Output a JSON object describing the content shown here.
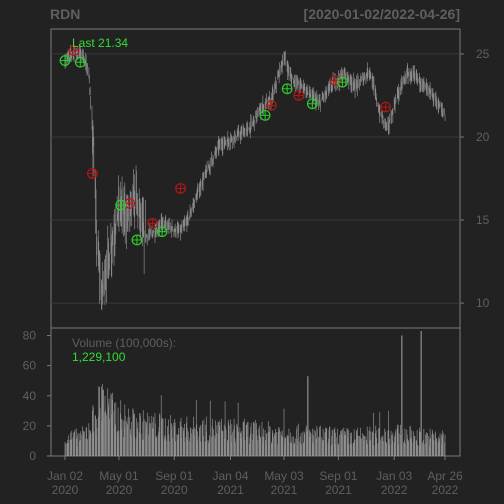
{
  "header": {
    "symbol": "RDN",
    "date_range": "[2020-01-02/2022-04-26]"
  },
  "colors": {
    "background": "#222222",
    "frame": "#7a7a7a",
    "text": "#5f5f5f",
    "grid": "#3a3a3a",
    "price_bar": "#8a8a8a",
    "volume_bar": "#8f8f8f",
    "buy_marker": "#2ecc2e",
    "sell_marker": "#b01818",
    "last_label": "#33dd33"
  },
  "chart_data": [
    {
      "type": "candlestick",
      "panel": "price",
      "last_label": "Last 21.34",
      "ylim": [
        8.5,
        26.5
      ],
      "y_ticks": [
        10,
        15,
        20,
        25
      ],
      "y_tick_labels": [
        "10",
        "15",
        "20",
        "25"
      ],
      "date_start": "2020-01-02",
      "date_end": "2022-04-26",
      "series_key_points": [
        {
          "date": "2020-01-02",
          "value": 24.6
        },
        {
          "date": "2020-01-20",
          "value": 25.1
        },
        {
          "date": "2020-02-10",
          "value": 25.0
        },
        {
          "date": "2020-02-24",
          "value": 23.8
        },
        {
          "date": "2020-03-05",
          "value": 19.5
        },
        {
          "date": "2020-03-12",
          "value": 14.0
        },
        {
          "date": "2020-03-23",
          "value": 10.5
        },
        {
          "date": "2020-04-02",
          "value": 12.0
        },
        {
          "date": "2020-04-15",
          "value": 13.5
        },
        {
          "date": "2020-05-01",
          "value": 15.8
        },
        {
          "date": "2020-05-20",
          "value": 15.2
        },
        {
          "date": "2020-06-08",
          "value": 16.5
        },
        {
          "date": "2020-06-25",
          "value": 14.0
        },
        {
          "date": "2020-07-15",
          "value": 14.2
        },
        {
          "date": "2020-08-05",
          "value": 14.8
        },
        {
          "date": "2020-08-25",
          "value": 14.5
        },
        {
          "date": "2020-09-15",
          "value": 14.3
        },
        {
          "date": "2020-10-01",
          "value": 15.0
        },
        {
          "date": "2020-11-05",
          "value": 17.5
        },
        {
          "date": "2020-12-10",
          "value": 19.5
        },
        {
          "date": "2021-01-15",
          "value": 20.0
        },
        {
          "date": "2021-02-15",
          "value": 20.5
        },
        {
          "date": "2021-03-15",
          "value": 21.8
        },
        {
          "date": "2021-04-05",
          "value": 22.2
        },
        {
          "date": "2021-05-03",
          "value": 24.8
        },
        {
          "date": "2021-05-20",
          "value": 23.5
        },
        {
          "date": "2021-06-15",
          "value": 23.0
        },
        {
          "date": "2021-07-20",
          "value": 22.0
        },
        {
          "date": "2021-08-20",
          "value": 23.2
        },
        {
          "date": "2021-09-15",
          "value": 23.8
        },
        {
          "date": "2021-10-10",
          "value": 23.0
        },
        {
          "date": "2021-11-10",
          "value": 24.0
        },
        {
          "date": "2021-12-01",
          "value": 21.5
        },
        {
          "date": "2021-12-20",
          "value": 20.5
        },
        {
          "date": "2022-01-10",
          "value": 22.5
        },
        {
          "date": "2022-02-01",
          "value": 23.8
        },
        {
          "date": "2022-02-25",
          "value": 23.5
        },
        {
          "date": "2022-03-20",
          "value": 22.8
        },
        {
          "date": "2022-04-10",
          "value": 22.0
        },
        {
          "date": "2022-04-26",
          "value": 21.34
        }
      ],
      "buy_signals": [
        {
          "date": "2020-01-02",
          "value": 24.6
        },
        {
          "date": "2020-02-05",
          "value": 24.5
        },
        {
          "date": "2020-05-05",
          "value": 15.9
        },
        {
          "date": "2020-06-10",
          "value": 13.8
        },
        {
          "date": "2020-08-05",
          "value": 14.3
        },
        {
          "date": "2021-03-22",
          "value": 21.3
        },
        {
          "date": "2021-05-10",
          "value": 22.9
        },
        {
          "date": "2021-07-05",
          "value": 22.0
        },
        {
          "date": "2021-09-10",
          "value": 23.3
        }
      ],
      "sell_signals": [
        {
          "date": "2020-01-22",
          "value": 25.2
        },
        {
          "date": "2020-03-03",
          "value": 17.8
        },
        {
          "date": "2020-05-25",
          "value": 16.0
        },
        {
          "date": "2020-07-15",
          "value": 14.8
        },
        {
          "date": "2020-09-15",
          "value": 16.9
        },
        {
          "date": "2021-04-05",
          "value": 21.9
        },
        {
          "date": "2021-06-05",
          "value": 22.5
        },
        {
          "date": "2021-08-25",
          "value": 23.4
        },
        {
          "date": "2021-12-15",
          "value": 21.8
        }
      ]
    },
    {
      "type": "bar",
      "panel": "volume",
      "label": "Volume (100,000s):",
      "last_value": "1,229,100",
      "ylim": [
        0,
        85
      ],
      "y_ticks": [
        0,
        20,
        40,
        60,
        80
      ],
      "y_tick_labels": [
        "0",
        "20",
        "40",
        "60",
        "80"
      ],
      "volume_key_points": [
        {
          "date": "2020-01-02",
          "value": 12
        },
        {
          "date": "2020-02-15",
          "value": 15
        },
        {
          "date": "2020-03-10",
          "value": 30
        },
        {
          "date": "2020-03-25",
          "value": 42
        },
        {
          "date": "2020-04-20",
          "value": 30
        },
        {
          "date": "2020-06-01",
          "value": 24
        },
        {
          "date": "2020-09-01",
          "value": 20
        },
        {
          "date": "2021-01-01",
          "value": 19
        },
        {
          "date": "2021-06-01",
          "value": 16
        },
        {
          "date": "2021-10-01",
          "value": 14
        },
        {
          "date": "2022-01-01",
          "value": 16
        },
        {
          "date": "2022-04-26",
          "value": 13
        }
      ],
      "volume_spikes": [
        {
          "date": "2020-03-18",
          "value": 46
        },
        {
          "date": "2020-03-27",
          "value": 44
        },
        {
          "date": "2021-06-25",
          "value": 53
        },
        {
          "date": "2022-01-20",
          "value": 80
        },
        {
          "date": "2022-03-04",
          "value": 83
        }
      ],
      "x_ticks": [
        {
          "date": "2020-01-02",
          "label1": "Jan 02",
          "label2": "2020"
        },
        {
          "date": "2020-05-01",
          "label1": "May 01",
          "label2": "2020"
        },
        {
          "date": "2020-09-01",
          "label1": "Sep 01",
          "label2": "2020"
        },
        {
          "date": "2021-01-04",
          "label1": "Jan 04",
          "label2": "2021"
        },
        {
          "date": "2021-05-03",
          "label1": "May 03",
          "label2": "2021"
        },
        {
          "date": "2021-09-01",
          "label1": "Sep 01",
          "label2": "2021"
        },
        {
          "date": "2022-01-03",
          "label1": "Jan 03",
          "label2": "2022"
        },
        {
          "date": "2022-04-26",
          "label1": "Apr 26",
          "label2": "2022"
        }
      ]
    }
  ]
}
